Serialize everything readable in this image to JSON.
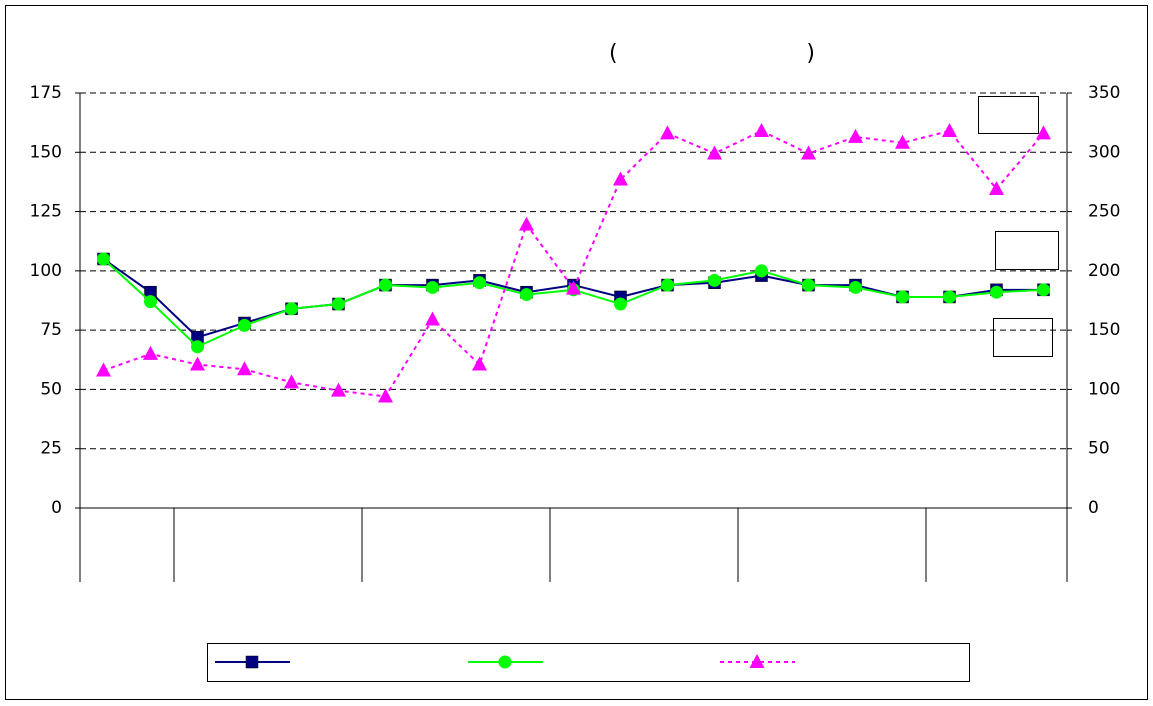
{
  "chart_data": {
    "type": "line",
    "title": "(                           )",
    "categories": [
      null,
      null,
      null,
      null,
      null,
      null,
      null,
      null,
      null,
      null,
      null,
      null,
      null,
      null,
      null,
      null,
      null,
      null,
      null,
      null,
      null
    ],
    "series": [
      {
        "color": "#000080",
        "marker": "square",
        "line_style": "solid",
        "values": [
          105,
          91,
          72,
          78,
          84,
          86,
          94,
          94,
          96,
          91,
          94,
          89,
          94,
          95,
          98,
          94,
          94,
          89,
          89,
          92,
          92
        ]
      },
      {
        "color": "#00ff00",
        "marker": "circle",
        "line_style": "solid",
        "values": [
          105,
          87,
          68,
          77,
          84,
          86,
          94,
          93,
          95,
          90,
          92,
          86,
          94,
          96,
          100,
          94,
          93,
          89,
          89,
          91,
          92
        ]
      },
      {
        "color": "#ff00ff",
        "marker": "triangle",
        "line_style": "dashed",
        "axis": "y2",
        "values": [
          116,
          130,
          121,
          117,
          106,
          99,
          94,
          159,
          121,
          239,
          185,
          277,
          316,
          299,
          318,
          299,
          313,
          308,
          318,
          269,
          316
        ]
      }
    ],
    "ylim": [
      0,
      175
    ],
    "yticks": [
      0,
      25,
      50,
      75,
      100,
      125,
      150,
      175
    ],
    "y2lim": [
      0,
      350
    ],
    "y2ticks": [
      0,
      50,
      100,
      150,
      200,
      250,
      300,
      350
    ],
    "grid": true
  }
}
